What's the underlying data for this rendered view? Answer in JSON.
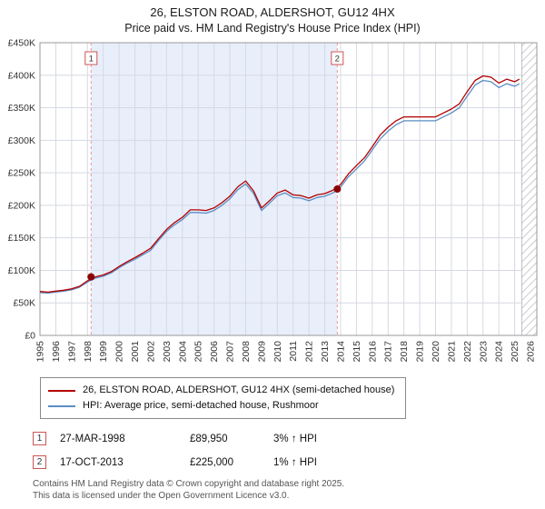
{
  "chart_data": {
    "type": "line",
    "title": "26, ELSTON ROAD, ALDERSHOT, GU12 4HX",
    "subtitle": "Price paid vs. HM Land Registry's House Price Index (HPI)",
    "xlim": [
      1995,
      2026.4
    ],
    "ylim": [
      0,
      450
    ],
    "y_unit": "GBP thousands",
    "y_tick_step": 50,
    "y_tick_labels": [
      "£0",
      "£50K",
      "£100K",
      "£150K",
      "£200K",
      "£250K",
      "£300K",
      "£350K",
      "£400K",
      "£450K"
    ],
    "x_tick_labels": [
      "1995",
      "1996",
      "1997",
      "1998",
      "1999",
      "2000",
      "2001",
      "2002",
      "2003",
      "2004",
      "2005",
      "2006",
      "2007",
      "2008",
      "2009",
      "2010",
      "2011",
      "2012",
      "2013",
      "2014",
      "2015",
      "2016",
      "2017",
      "2018",
      "2019",
      "2020",
      "2021",
      "2022",
      "2023",
      "2024",
      "2025",
      "2026"
    ],
    "grid": true,
    "legend_position": "below",
    "x": [
      1995,
      1995.5,
      1996,
      1996.5,
      1997,
      1997.5,
      1998,
      1998.5,
      1999,
      1999.5,
      2000,
      2000.5,
      2001,
      2001.5,
      2002,
      2002.5,
      2003,
      2003.5,
      2004,
      2004.5,
      2005,
      2005.5,
      2006,
      2006.5,
      2007,
      2007.5,
      2008,
      2008.5,
      2009,
      2009.5,
      2010,
      2010.5,
      2011,
      2011.5,
      2012,
      2012.5,
      2013,
      2013.5,
      2014,
      2014.5,
      2015,
      2015.5,
      2016,
      2016.5,
      2017,
      2017.5,
      2018,
      2018.5,
      2019,
      2019.5,
      2020,
      2020.5,
      2021,
      2021.5,
      2022,
      2022.5,
      2023,
      2023.5,
      2024,
      2024.5,
      2025,
      2025.3
    ],
    "series": [
      {
        "id": "property",
        "name": "26, ELSTON ROAD, ALDERSHOT, GU12 4HX (semi-detached house)",
        "color": "#b30000",
        "values": [
          67.5,
          66.5,
          68,
          69.5,
          71.5,
          75.5,
          84,
          90,
          93,
          98,
          106,
          113,
          119.5,
          126.5,
          134,
          149,
          163,
          173.5,
          181.5,
          193,
          193,
          192,
          196,
          204,
          214,
          228.5,
          237.5,
          222,
          196,
          207,
          219,
          223.5,
          216,
          215,
          211,
          216,
          218,
          223,
          232,
          248.5,
          261,
          273,
          290,
          308,
          320,
          330,
          336,
          336,
          336,
          336,
          336,
          342,
          348,
          356,
          375,
          392,
          399,
          397,
          388,
          394,
          390,
          394
        ]
      },
      {
        "id": "hpi",
        "name": "HPI: Average price, semi-detached house, Rushmoor",
        "color": "#5b8ec4",
        "values": [
          66,
          65,
          66.5,
          68,
          70,
          74,
          82,
          88,
          91,
          96,
          104,
          111,
          117,
          124,
          131,
          146,
          160,
          170,
          178,
          189,
          189,
          188,
          192,
          200,
          210,
          224,
          233,
          218,
          192,
          203,
          215,
          219,
          212,
          211,
          207,
          212,
          214,
          219,
          228,
          244,
          256,
          268,
          285,
          302,
          314,
          324,
          330,
          330,
          330,
          330,
          330,
          336,
          342,
          350,
          368,
          385,
          392,
          390,
          381,
          387,
          383,
          387
        ]
      }
    ],
    "sales": [
      {
        "num": "1",
        "year": 1998.23,
        "value": 89.95,
        "date": "27-MAR-1998",
        "price": "£89,950",
        "hpi_change": "3% ↑ HPI"
      },
      {
        "num": "2",
        "year": 2013.79,
        "value": 225,
        "date": "17-OCT-2013",
        "price": "£225,000",
        "hpi_change": "1% ↑ HPI"
      }
    ],
    "shaded_region": [
      1998.23,
      2013.79
    ],
    "hatch_region": [
      2025.45,
      2026.4
    ],
    "colors": {
      "shade": "#e8eefa",
      "grid": "#d6d9e4",
      "dashed": "#e89898",
      "marker": "#8b0000",
      "hatch": "#babac4",
      "border": "#999999",
      "number_box_border": "#cc5555"
    }
  },
  "footer": {
    "line1": "Contains HM Land Registry data © Crown copyright and database right 2025.",
    "line2": "This data is licensed under the Open Government Licence v3.0."
  }
}
